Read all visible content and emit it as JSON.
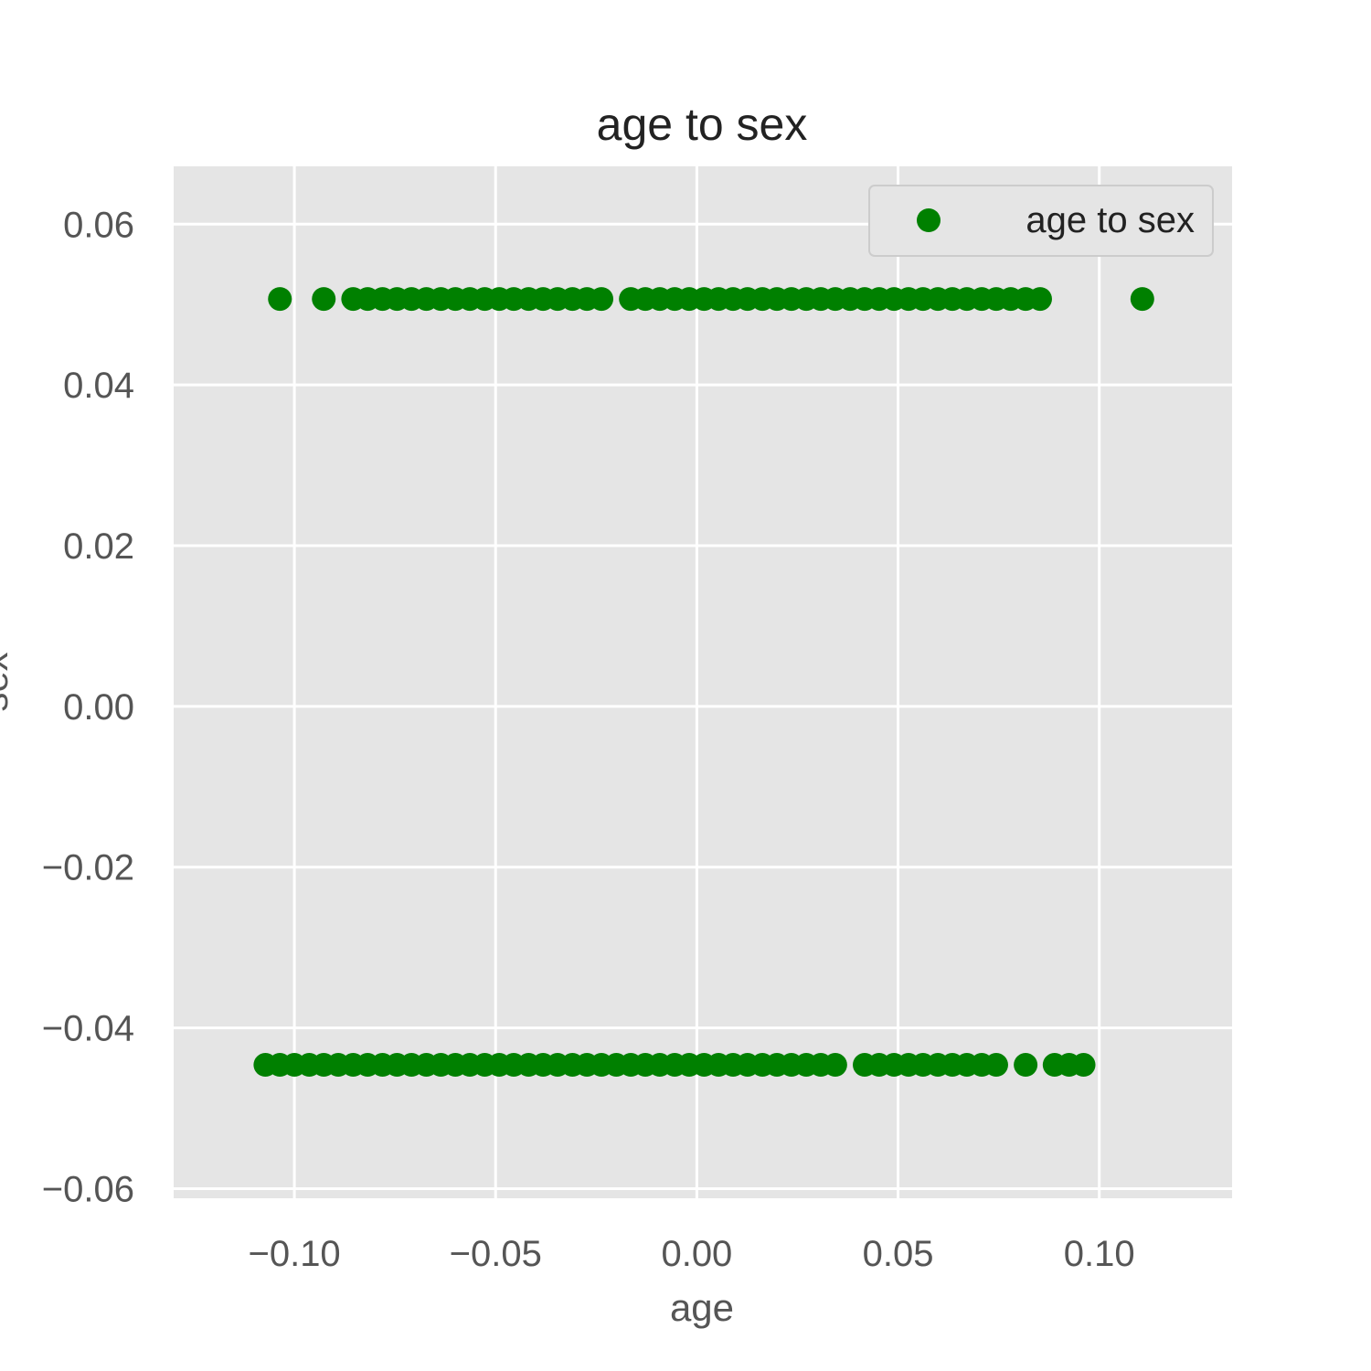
{
  "chart_data": {
    "type": "scatter",
    "title": "age to sex",
    "xlabel": "age",
    "ylabel": "sex",
    "xlim": [
      -0.13,
      0.133
    ],
    "ylim": [
      -0.0612,
      0.0672
    ],
    "xticks": [
      -0.1,
      -0.05,
      0.0,
      0.05,
      0.1
    ],
    "xtick_labels": [
      "−0.10",
      "−0.05",
      "0.00",
      "0.05",
      "0.10"
    ],
    "yticks": [
      -0.06,
      -0.04,
      -0.02,
      0.0,
      0.02,
      0.04,
      0.06
    ],
    "ytick_labels": [
      "−0.06",
      "−0.04",
      "−0.02",
      "0.00",
      "0.02",
      "0.04",
      "0.06"
    ],
    "grid": true,
    "legend_position": "top-right",
    "colors": {
      "marker": "#008000",
      "plot_background": "#e5e5e5",
      "grid": "#ffffff"
    },
    "series": [
      {
        "name": "age to sex",
        "color": "#008000",
        "points": [
          {
            "x": -0.1036,
            "y": 0.0507
          },
          {
            "x": -0.0927,
            "y": 0.0507
          },
          {
            "x": -0.0854,
            "y": 0.0507
          },
          {
            "x": -0.0818,
            "y": 0.0507
          },
          {
            "x": -0.0781,
            "y": 0.0507
          },
          {
            "x": -0.0745,
            "y": 0.0507
          },
          {
            "x": -0.0709,
            "y": 0.0507
          },
          {
            "x": -0.0672,
            "y": 0.0507
          },
          {
            "x": -0.0636,
            "y": 0.0507
          },
          {
            "x": -0.06,
            "y": 0.0507
          },
          {
            "x": -0.0564,
            "y": 0.0507
          },
          {
            "x": -0.0527,
            "y": 0.0507
          },
          {
            "x": -0.0491,
            "y": 0.0507
          },
          {
            "x": -0.0455,
            "y": 0.0507
          },
          {
            "x": -0.0418,
            "y": 0.0507
          },
          {
            "x": -0.0382,
            "y": 0.0507
          },
          {
            "x": -0.0346,
            "y": 0.0507
          },
          {
            "x": -0.0309,
            "y": 0.0507
          },
          {
            "x": -0.0273,
            "y": 0.0507
          },
          {
            "x": -0.0237,
            "y": 0.0507
          },
          {
            "x": -0.0164,
            "y": 0.0507
          },
          {
            "x": -0.0128,
            "y": 0.0507
          },
          {
            "x": -0.0092,
            "y": 0.0507
          },
          {
            "x": -0.0055,
            "y": 0.0507
          },
          {
            "x": -0.0019,
            "y": 0.0507
          },
          {
            "x": 0.0018,
            "y": 0.0507
          },
          {
            "x": 0.0054,
            "y": 0.0507
          },
          {
            "x": 0.009,
            "y": 0.0507
          },
          {
            "x": 0.0126,
            "y": 0.0507
          },
          {
            "x": 0.0163,
            "y": 0.0507
          },
          {
            "x": 0.0199,
            "y": 0.0507
          },
          {
            "x": 0.0235,
            "y": 0.0507
          },
          {
            "x": 0.0272,
            "y": 0.0507
          },
          {
            "x": 0.0308,
            "y": 0.0507
          },
          {
            "x": 0.0344,
            "y": 0.0507
          },
          {
            "x": 0.0381,
            "y": 0.0507
          },
          {
            "x": 0.0417,
            "y": 0.0507
          },
          {
            "x": 0.0453,
            "y": 0.0507
          },
          {
            "x": 0.049,
            "y": 0.0507
          },
          {
            "x": 0.0526,
            "y": 0.0507
          },
          {
            "x": 0.0562,
            "y": 0.0507
          },
          {
            "x": 0.0599,
            "y": 0.0507
          },
          {
            "x": 0.0635,
            "y": 0.0507
          },
          {
            "x": 0.0671,
            "y": 0.0507
          },
          {
            "x": 0.0708,
            "y": 0.0507
          },
          {
            "x": 0.0744,
            "y": 0.0507
          },
          {
            "x": 0.078,
            "y": 0.0507
          },
          {
            "x": 0.0817,
            "y": 0.0507
          },
          {
            "x": 0.0853,
            "y": 0.0507
          },
          {
            "x": 0.1107,
            "y": 0.0507
          },
          {
            "x": -0.1072,
            "y": -0.0446
          },
          {
            "x": -0.1036,
            "y": -0.0446
          },
          {
            "x": -0.1,
            "y": -0.0446
          },
          {
            "x": -0.0963,
            "y": -0.0446
          },
          {
            "x": -0.0927,
            "y": -0.0446
          },
          {
            "x": -0.0891,
            "y": -0.0446
          },
          {
            "x": -0.0854,
            "y": -0.0446
          },
          {
            "x": -0.0818,
            "y": -0.0446
          },
          {
            "x": -0.0781,
            "y": -0.0446
          },
          {
            "x": -0.0745,
            "y": -0.0446
          },
          {
            "x": -0.0709,
            "y": -0.0446
          },
          {
            "x": -0.0672,
            "y": -0.0446
          },
          {
            "x": -0.0636,
            "y": -0.0446
          },
          {
            "x": -0.06,
            "y": -0.0446
          },
          {
            "x": -0.0564,
            "y": -0.0446
          },
          {
            "x": -0.0527,
            "y": -0.0446
          },
          {
            "x": -0.0491,
            "y": -0.0446
          },
          {
            "x": -0.0455,
            "y": -0.0446
          },
          {
            "x": -0.0418,
            "y": -0.0446
          },
          {
            "x": -0.0382,
            "y": -0.0446
          },
          {
            "x": -0.0346,
            "y": -0.0446
          },
          {
            "x": -0.0309,
            "y": -0.0446
          },
          {
            "x": -0.0273,
            "y": -0.0446
          },
          {
            "x": -0.0237,
            "y": -0.0446
          },
          {
            "x": -0.02,
            "y": -0.0446
          },
          {
            "x": -0.0164,
            "y": -0.0446
          },
          {
            "x": -0.0128,
            "y": -0.0446
          },
          {
            "x": -0.0092,
            "y": -0.0446
          },
          {
            "x": -0.0055,
            "y": -0.0446
          },
          {
            "x": -0.0019,
            "y": -0.0446
          },
          {
            "x": 0.0018,
            "y": -0.0446
          },
          {
            "x": 0.0054,
            "y": -0.0446
          },
          {
            "x": 0.009,
            "y": -0.0446
          },
          {
            "x": 0.0126,
            "y": -0.0446
          },
          {
            "x": 0.0163,
            "y": -0.0446
          },
          {
            "x": 0.0199,
            "y": -0.0446
          },
          {
            "x": 0.0235,
            "y": -0.0446
          },
          {
            "x": 0.0272,
            "y": -0.0446
          },
          {
            "x": 0.0308,
            "y": -0.0446
          },
          {
            "x": 0.0344,
            "y": -0.0446
          },
          {
            "x": 0.0417,
            "y": -0.0446
          },
          {
            "x": 0.0453,
            "y": -0.0446
          },
          {
            "x": 0.049,
            "y": -0.0446
          },
          {
            "x": 0.0526,
            "y": -0.0446
          },
          {
            "x": 0.0562,
            "y": -0.0446
          },
          {
            "x": 0.0599,
            "y": -0.0446
          },
          {
            "x": 0.0635,
            "y": -0.0446
          },
          {
            "x": 0.0671,
            "y": -0.0446
          },
          {
            "x": 0.0708,
            "y": -0.0446
          },
          {
            "x": 0.0744,
            "y": -0.0446
          },
          {
            "x": 0.0817,
            "y": -0.0446
          },
          {
            "x": 0.0889,
            "y": -0.0446
          },
          {
            "x": 0.0925,
            "y": -0.0446
          },
          {
            "x": 0.0961,
            "y": -0.0446
          }
        ]
      }
    ]
  }
}
